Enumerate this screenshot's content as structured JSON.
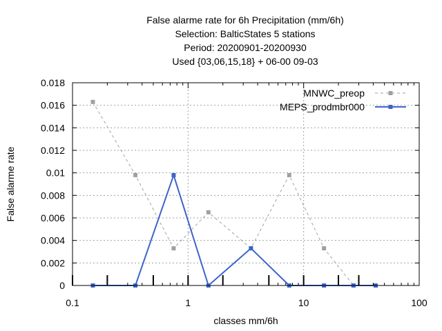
{
  "chart_data": {
    "type": "line",
    "title_lines": [
      "False alarme rate  for 6h Precipitation (mm/6h)",
      "Selection: BalticStates      5 stations",
      "Period: 20200901-20200930",
      "Used {03,06,15,18} + 06-00 09-03"
    ],
    "xlabel": "classes mm/6h",
    "ylabel": "False alarme rate",
    "xscale": "log",
    "xlim": [
      0.1,
      100
    ],
    "ylim": [
      0,
      0.018
    ],
    "xticks": [
      0.1,
      1,
      10,
      100
    ],
    "xtick_labels": [
      "0.1",
      "1",
      "10",
      "100"
    ],
    "yticks": [
      0,
      0.002,
      0.004,
      0.006,
      0.008,
      0.01,
      0.012,
      0.014,
      0.016,
      0.018
    ],
    "ytick_labels": [
      "0",
      "0.002",
      "0.004",
      "0.006",
      "0.008",
      "0.01",
      "0.012",
      "0.014",
      "0.016",
      "0.018"
    ],
    "class_markers_x": [
      0.1,
      0.2,
      0.5,
      1,
      2,
      5,
      10,
      20,
      30
    ],
    "grid": true,
    "legend_position": "top-right",
    "series": [
      {
        "name": "MNWC_preop",
        "color": "#a0a0a0",
        "dash": true,
        "x": [
          0.15,
          0.35,
          0.75,
          1.5,
          3.5,
          7.5,
          15,
          27,
          42
        ],
        "y": [
          0.0163,
          0.0098,
          0.0033,
          0.0065,
          0.0033,
          0.0098,
          0.0033,
          0.0,
          0.0
        ]
      },
      {
        "name": "MEPS_prodmbr000",
        "color": "#3c64c8",
        "dash": false,
        "x": [
          0.15,
          0.35,
          0.75,
          1.5,
          3.5,
          7.5,
          15,
          27,
          42
        ],
        "y": [
          0.0,
          0.0,
          0.0098,
          0.0,
          0.0033,
          0.0,
          0.0,
          0.0,
          0.0
        ]
      }
    ]
  }
}
